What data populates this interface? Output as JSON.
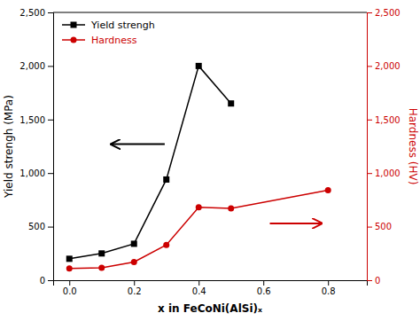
{
  "chart_data": {
    "type": "line",
    "x_label": "x in FeCoNi(AlSi)ₓ",
    "y_label": "Yield strengh (MPa)",
    "y2_label": "Hardness (HV)",
    "xlim": [
      -0.05,
      0.92
    ],
    "xticks": [
      {
        "value": 0.0,
        "label": "0.0"
      },
      0.2,
      0.4,
      0.6,
      0.8
    ],
    "ylim": [
      0,
      2500
    ],
    "yticks": [
      0,
      500,
      {
        "value": 1000,
        "label": "1,000"
      },
      {
        "value": 1500,
        "label": "1,500"
      },
      {
        "value": 2000,
        "label": "2,000"
      },
      {
        "value": 2500,
        "label": "2,500"
      }
    ],
    "y2lim": [
      0,
      2500
    ],
    "y2ticks": [
      0,
      500,
      {
        "value": 1000,
        "label": "1,000"
      },
      {
        "value": 1500,
        "label": "1,500"
      },
      {
        "value": 2000,
        "label": "2,000"
      },
      {
        "value": 2500,
        "label": "2,500"
      }
    ],
    "legend": "upper left",
    "series": [
      {
        "name": "Yield strengh",
        "color": "#000000",
        "marker": "square",
        "line_style": "solid",
        "axis": "y",
        "x": [
          0.0,
          0.1,
          0.2,
          0.3,
          0.4,
          0.5
        ],
        "values": [
          200,
          250,
          340,
          940,
          2000,
          1650
        ]
      },
      {
        "name": "Hardness",
        "color": "#cc0000",
        "marker": "circle",
        "line_style": "solid",
        "axis": "y2",
        "x": [
          0.0,
          0.1,
          0.2,
          0.3,
          0.4,
          0.5,
          0.8
        ],
        "values": [
          110,
          115,
          170,
          330,
          680,
          670,
          840
        ]
      }
    ],
    "annotations": [
      {
        "type": "arrow",
        "x_start": 0.295,
        "x_end": 0.13,
        "y": 1270,
        "color": "#000000"
      },
      {
        "type": "arrow",
        "x_start": 0.62,
        "x_end": 0.78,
        "y": 530,
        "color": "#cc0000"
      }
    ]
  }
}
